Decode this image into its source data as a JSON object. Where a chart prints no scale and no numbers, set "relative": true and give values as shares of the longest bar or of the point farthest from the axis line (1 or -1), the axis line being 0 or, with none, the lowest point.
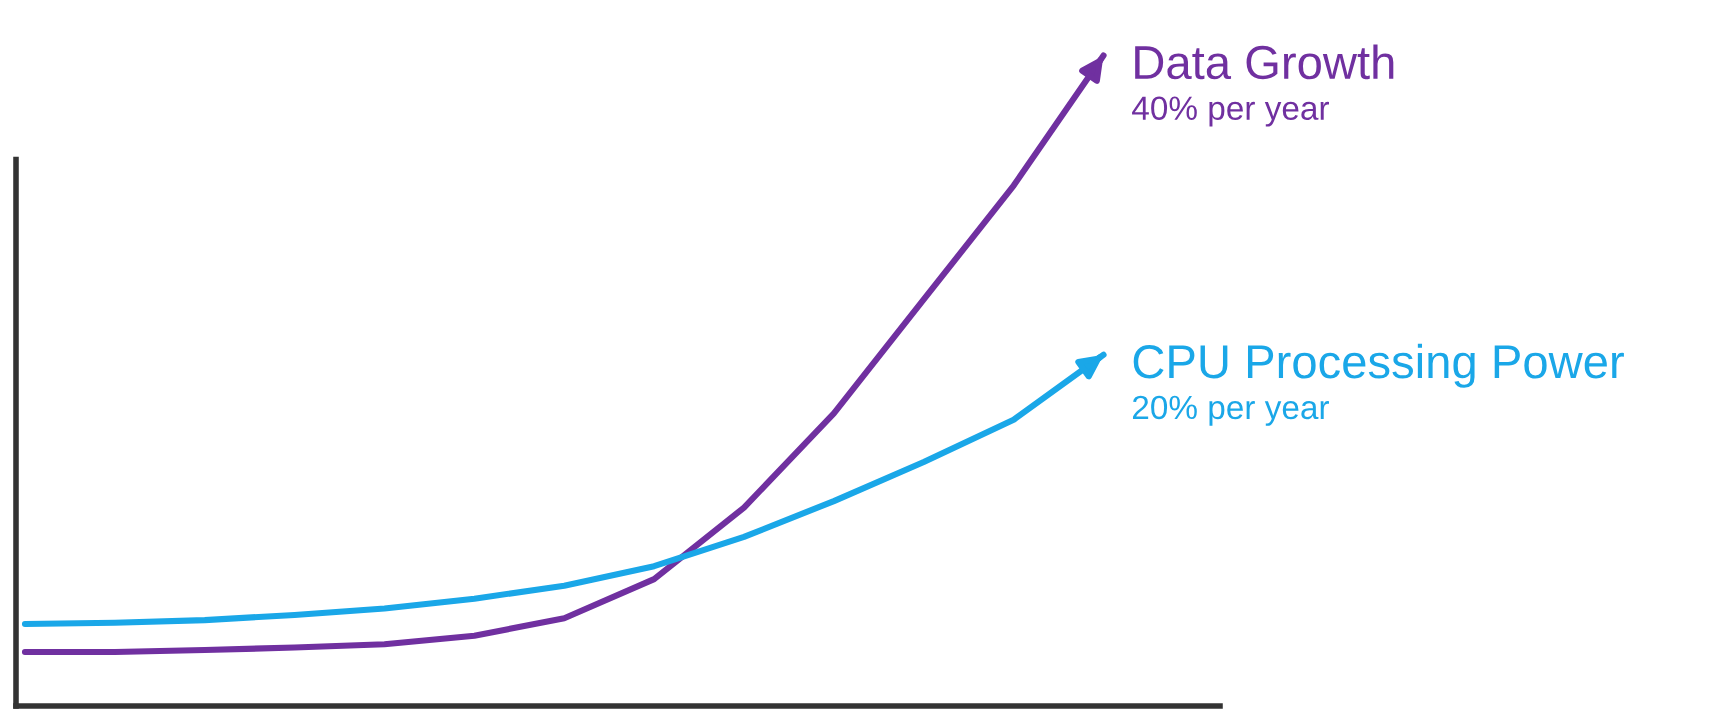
{
  "chart_data": {
    "type": "line",
    "relative": true,
    "legend": "right",
    "marker": "none",
    "line_style": "solid",
    "categories": [
      null,
      null,
      null,
      null,
      null,
      null,
      null,
      null,
      null,
      null,
      null,
      null,
      null
    ],
    "series": [
      {
        "name": "Data Growth",
        "color": "#7030a0",
        "values": [
          0.083,
          0.083,
          0.086,
          0.09,
          0.095,
          0.108,
          0.135,
          0.195,
          0.305,
          0.45,
          0.625,
          0.8,
          1.0
        ]
      },
      {
        "name": "CPU Processing Power",
        "color": "#1aa7e8",
        "values": [
          0.126,
          0.128,
          0.132,
          0.14,
          0.15,
          0.165,
          0.185,
          0.215,
          0.26,
          0.315,
          0.375,
          0.44,
          0.54
        ]
      }
    ],
    "annotations": [
      "40% per year",
      "20% per year"
    ]
  }
}
